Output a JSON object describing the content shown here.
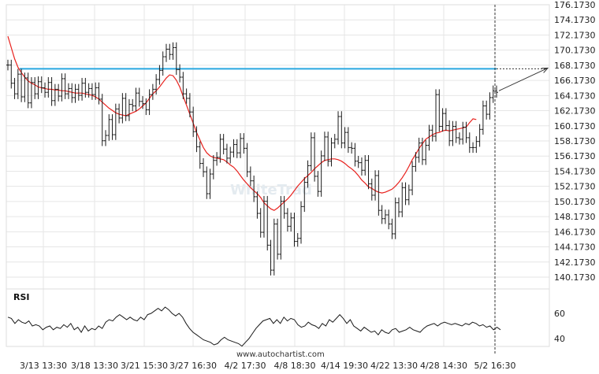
{
  "chart_data": [
    {
      "type": "ohlc",
      "title": "",
      "xlabel": "",
      "ylabel": "",
      "x_tick_labels": [
        "3/13 13:30",
        "3/18 13:30",
        "3/21 15:30",
        "3/27 16:30",
        "4/2 17:30",
        "4/8 18:30",
        "4/14 19:30",
        "4/22 13:30",
        "4/28 14:30",
        "5/2 16:30"
      ],
      "y_tick_labels": [
        "140.1730",
        "142.1730",
        "144.1730",
        "146.1730",
        "148.1730",
        "150.1730",
        "152.1730",
        "154.1730",
        "156.1730",
        "158.1730",
        "160.1730",
        "162.1730",
        "164.1730",
        "166.1730",
        "168.1730",
        "170.1730",
        "172.1730",
        "174.1730",
        "176.1730"
      ],
      "ylim": [
        140.173,
        176.173
      ],
      "grid": true,
      "annotations": {
        "resistance_level": 167.7,
        "resistance_color": "#29a8e0",
        "forecast_from": 164.8,
        "forecast_to": 167.8
      },
      "series": [
        {
          "role": "price",
          "color": "#1a1a1a",
          "values": [
            168.2,
            165.8,
            164.4,
            167.0,
            164.0,
            166.5,
            163.2,
            165.9,
            164.4,
            166.0,
            165.2,
            164.6,
            165.9,
            163.5,
            165.0,
            164.1,
            166.4,
            164.4,
            165.1,
            163.9,
            165.0,
            164.2,
            165.8,
            164.6,
            165.1,
            164.3,
            165.2,
            163.7,
            158.2,
            158.9,
            161.0,
            159.0,
            162.4,
            161.2,
            163.8,
            161.5,
            163.0,
            162.8,
            164.5,
            163.4,
            163.1,
            162.3,
            164.3,
            165.0,
            166.3,
            167.5,
            169.3,
            170.3,
            169.6,
            170.5,
            167.6,
            166.6,
            164.4,
            163.8,
            162.0,
            159.4,
            157.4,
            155.2,
            154.1,
            151.2,
            153.8,
            155.6,
            156.0,
            158.4,
            157.1,
            155.9,
            156.7,
            157.7,
            156.6,
            158.5,
            157.2,
            154.1,
            152.9,
            150.8,
            148.6,
            146.1,
            150.2,
            144.4,
            141.1,
            147.2,
            143.2,
            150.2,
            148.6,
            146.9,
            148.0,
            144.9,
            145.3,
            149.5,
            152.7,
            154.9,
            158.6,
            153.5,
            151.5,
            156.2,
            158.7,
            155.5,
            157.9,
            158.4,
            161.4,
            157.9,
            159.3,
            157.3,
            157.2,
            155.5,
            155.3,
            154.3,
            155.6,
            152.5,
            151.0,
            153.6,
            149.0,
            147.9,
            148.4,
            147.2,
            145.9,
            150.0,
            148.8,
            152.0,
            150.4,
            151.7,
            154.8,
            156.0,
            157.9,
            155.7,
            157.6,
            159.6,
            158.8,
            164.3,
            160.1,
            161.8,
            160.2,
            158.2,
            160.1,
            158.6,
            158.4,
            160.0,
            158.6,
            157.3,
            157.3,
            158.1,
            159.7,
            162.8,
            161.7,
            163.9,
            164.8,
            164.6
          ]
        },
        {
          "role": "moving_average",
          "color": "#e8201c",
          "values": [
            172.0,
            170.5,
            169.0,
            167.9,
            167.2,
            166.6,
            166.1,
            165.8,
            165.6,
            165.3,
            165.2,
            165.1,
            165.0,
            165.0,
            164.9,
            164.9,
            164.8,
            164.8,
            164.7,
            164.6,
            164.5,
            164.5,
            164.5,
            164.4,
            164.3,
            164.2,
            164.0,
            163.7,
            163.3,
            162.9,
            162.5,
            162.2,
            161.9,
            161.7,
            161.6,
            161.5,
            161.7,
            161.9,
            162.1,
            162.4,
            162.8,
            163.2,
            163.8,
            164.4,
            164.8,
            165.3,
            165.9,
            166.5,
            166.9,
            166.8,
            166.2,
            165.3,
            164.1,
            162.9,
            161.7,
            160.5,
            159.3,
            158.3,
            157.3,
            156.6,
            156.2,
            156.0,
            155.9,
            155.8,
            155.7,
            155.4,
            155.0,
            154.7,
            154.2,
            153.6,
            153.0,
            152.5,
            152.0,
            151.6,
            151.2,
            150.7,
            150.0,
            149.6,
            149.2,
            149.0,
            149.3,
            149.7,
            150.1,
            150.5,
            151.0,
            151.6,
            152.2,
            152.7,
            153.2,
            153.6,
            154.0,
            154.5,
            154.9,
            155.3,
            155.6,
            155.7,
            155.8,
            155.8,
            155.7,
            155.5,
            155.2,
            154.8,
            154.5,
            154.1,
            153.6,
            153.0,
            152.6,
            152.1,
            151.9,
            151.6,
            151.4,
            151.3,
            151.4,
            151.6,
            151.8,
            152.2,
            152.7,
            153.3,
            154.0,
            154.8,
            155.7,
            156.4,
            157.2,
            157.8,
            158.4,
            158.7,
            159.0,
            159.2,
            159.3,
            159.5,
            159.6,
            159.5,
            159.6,
            159.7,
            159.8,
            159.9,
            160.0,
            160.6,
            161.1,
            161.0
          ]
        }
      ]
    },
    {
      "type": "line",
      "title": "RSI",
      "y_tick_labels": [
        "60",
        "40"
      ],
      "ylim": [
        33,
        68
      ],
      "series": [
        {
          "role": "rsi",
          "color": "#1a1a1a",
          "values": [
            57,
            56,
            52,
            55,
            53,
            52,
            54,
            50,
            51,
            50,
            47,
            49,
            50,
            47,
            49,
            48,
            51,
            49,
            52,
            47,
            49,
            45,
            50,
            46,
            48,
            47,
            50,
            48,
            53,
            55,
            54,
            57,
            59,
            57,
            55,
            57,
            55,
            54,
            57,
            55,
            59,
            60,
            62,
            64,
            62,
            65,
            63,
            60,
            58,
            60,
            57,
            52,
            48,
            45,
            43,
            41,
            39,
            38,
            37,
            35,
            36,
            39,
            41,
            39,
            38,
            37,
            36,
            34,
            37,
            40,
            44,
            48,
            51,
            54,
            55,
            56,
            52,
            55,
            52,
            57,
            54,
            56,
            55,
            51,
            49,
            50,
            53,
            51,
            50,
            48,
            52,
            50,
            55,
            53,
            56,
            59,
            56,
            52,
            55,
            50,
            48,
            46,
            49,
            47,
            45,
            46,
            43,
            47,
            45,
            44,
            47,
            48,
            45,
            46,
            47,
            49,
            47,
            46,
            45,
            48,
            50,
            51,
            52,
            50,
            52,
            53,
            52,
            51,
            52,
            51,
            50,
            52,
            51,
            53,
            52,
            50,
            51,
            49,
            50,
            47,
            49,
            47
          ]
        }
      ]
    }
  ],
  "watermark": "WhiteTrad",
  "footer": {
    "url": "www.autochartist.com"
  }
}
